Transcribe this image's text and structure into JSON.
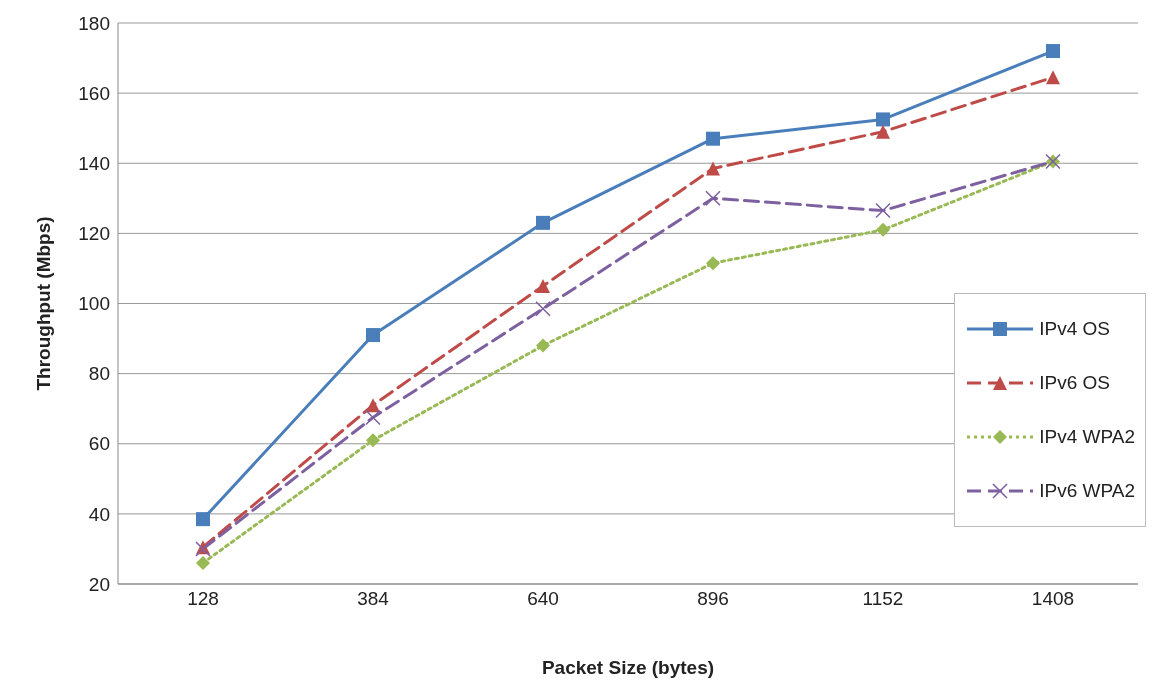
{
  "chart_data": {
    "type": "line",
    "xlabel": "Packet Size (bytes)",
    "ylabel": "Throughput (Mbps)",
    "categories": [
      "128",
      "384",
      "640",
      "896",
      "1152",
      "1408"
    ],
    "ylim": [
      20,
      180
    ],
    "yticks": [
      20,
      40,
      60,
      80,
      100,
      120,
      140,
      160,
      180
    ],
    "grid": "y",
    "legend": "right",
    "series": [
      {
        "name": "IPv4 OS",
        "color": "#4a7ebb",
        "marker": "square",
        "line_style": "solid",
        "values": [
          38.5,
          91,
          123,
          147,
          152.5,
          172
        ]
      },
      {
        "name": "IPv6 OS",
        "color": "#be4b48",
        "marker": "triangle",
        "line_style": "dashed",
        "values": [
          30.5,
          71,
          105,
          138.5,
          149,
          164.5
        ]
      },
      {
        "name": "IPv4 WPA2",
        "color": "#98b954",
        "marker": "diamond",
        "line_style": "dotted",
        "values": [
          26,
          61,
          88,
          111.5,
          121,
          140.5
        ]
      },
      {
        "name": "IPv6 WPA2",
        "color": "#7d60a0",
        "marker": "cross",
        "line_style": "dashed",
        "values": [
          30,
          67.5,
          98.5,
          130,
          126.5,
          140.5
        ]
      }
    ]
  }
}
